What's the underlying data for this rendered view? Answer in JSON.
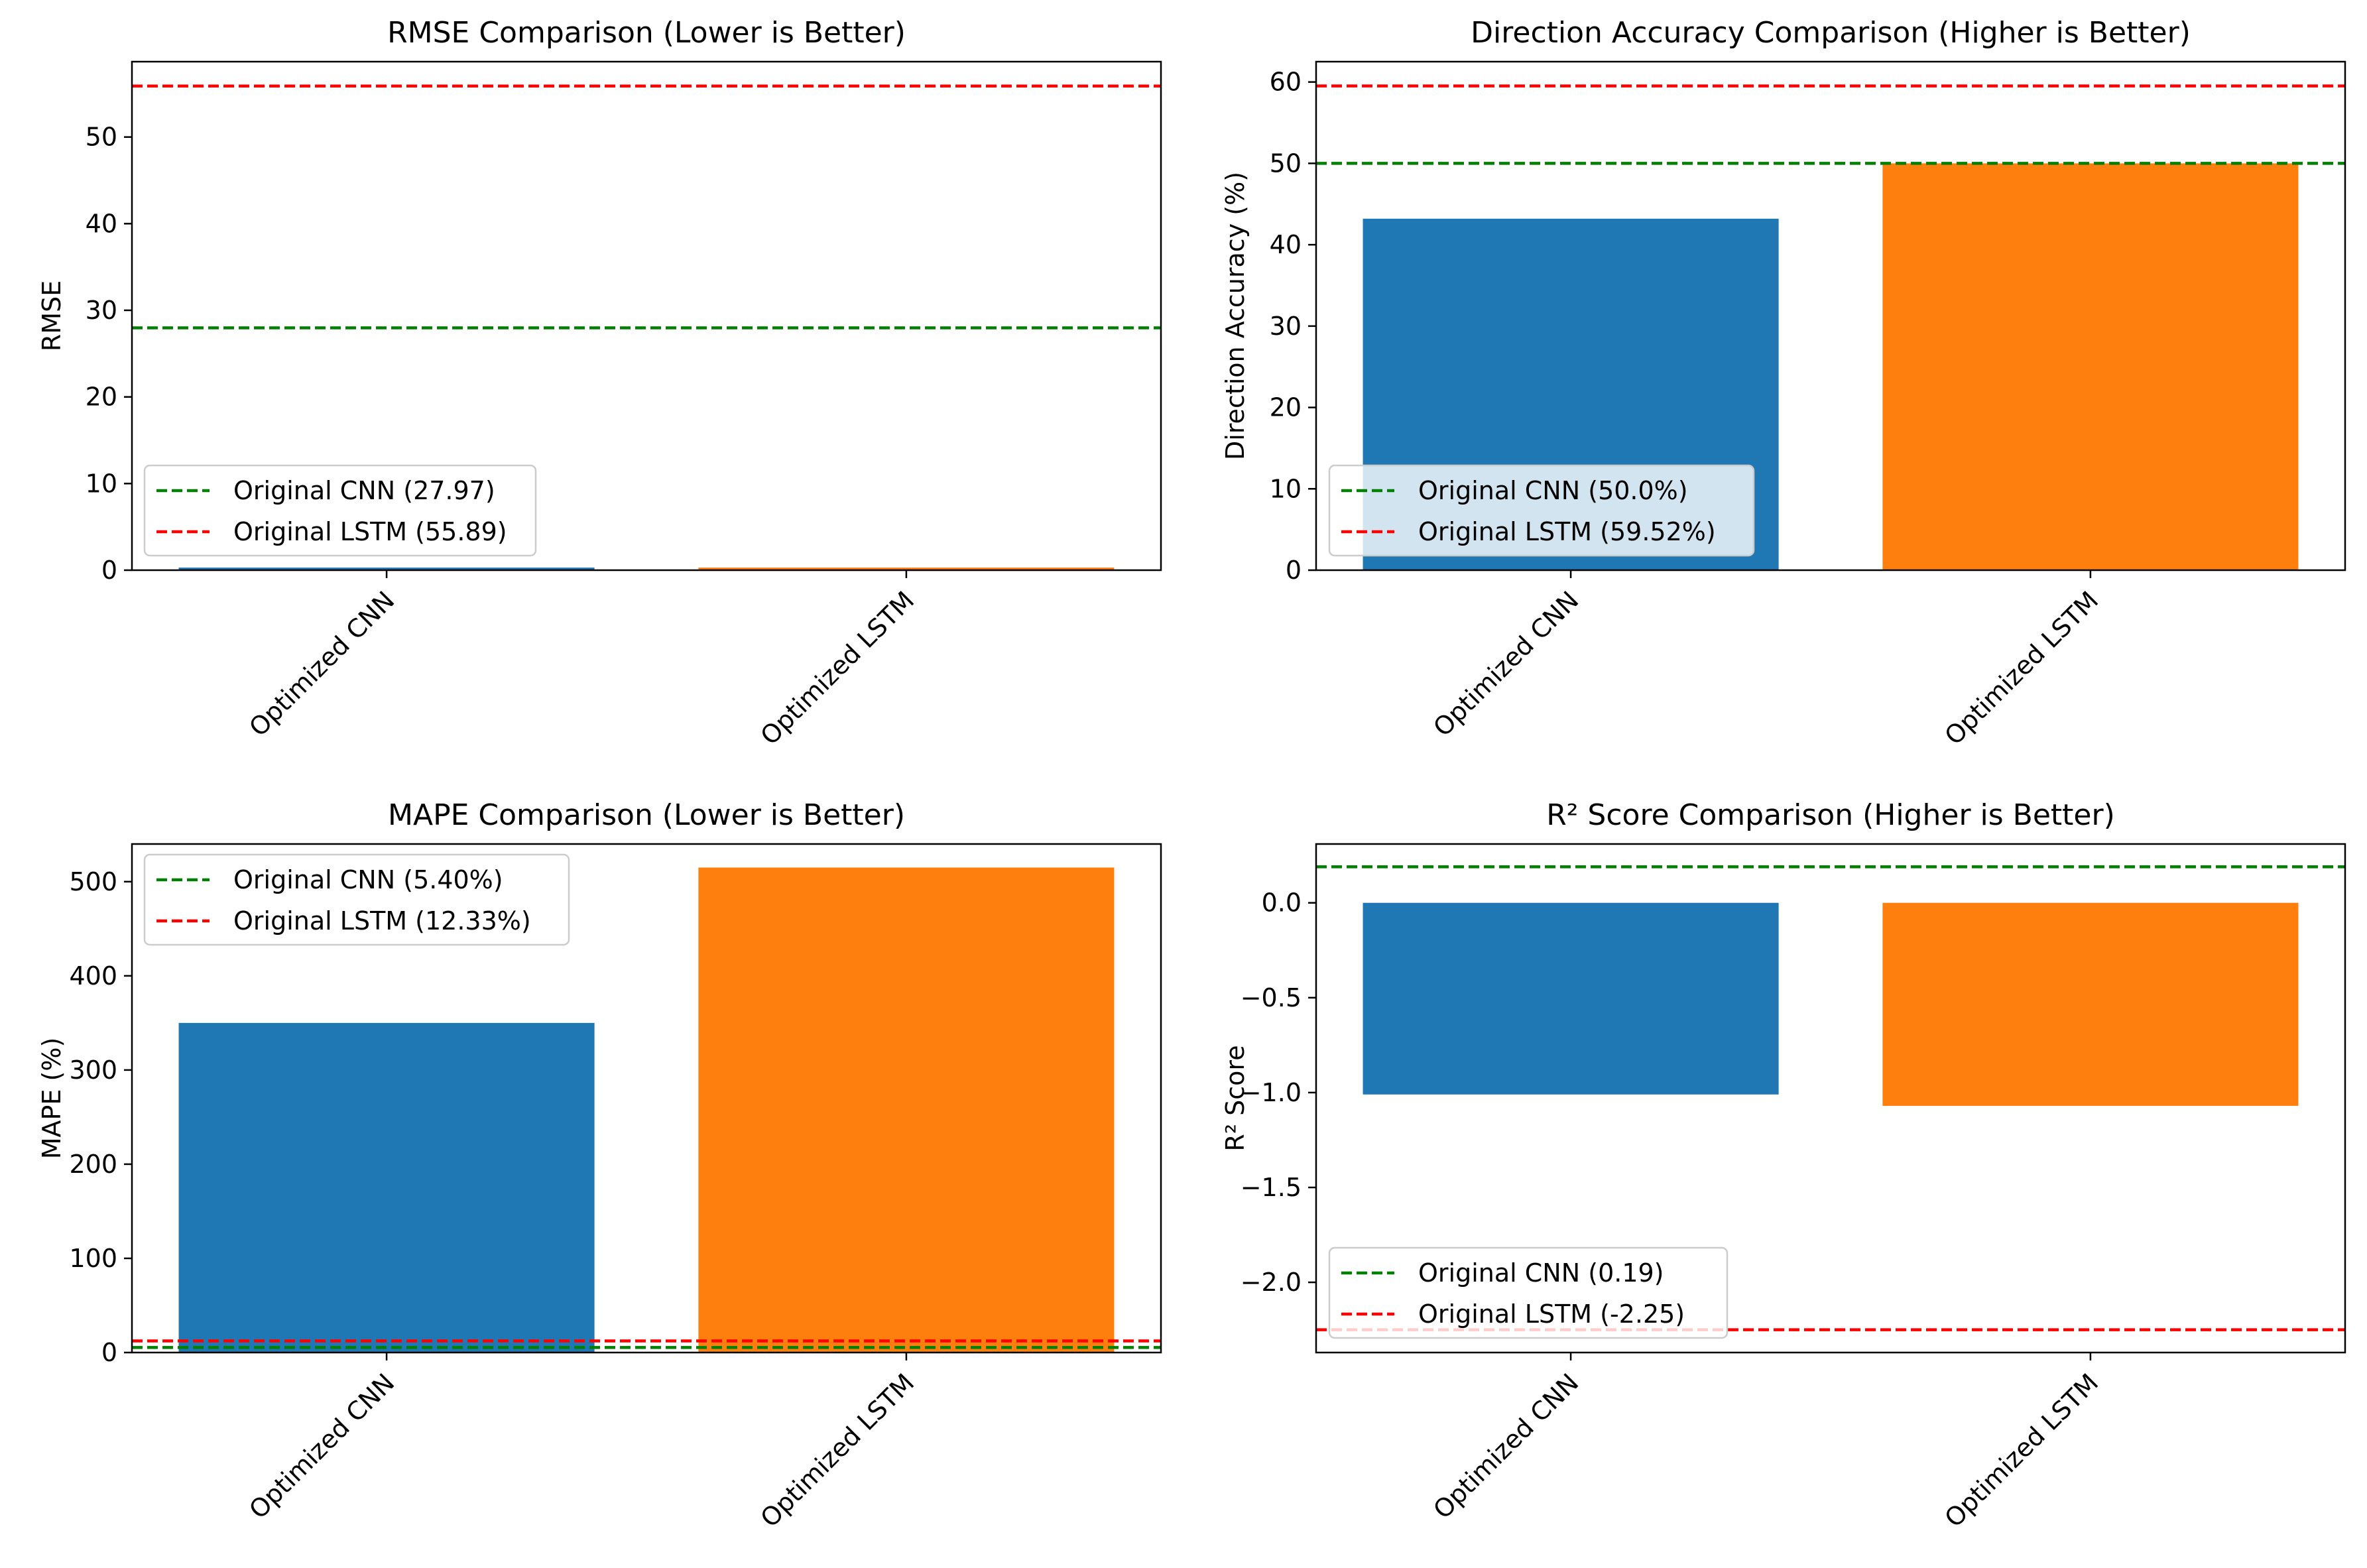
{
  "chart_data": [
    {
      "type": "bar",
      "title": "RMSE Comparison (Lower is Better)",
      "xlabel": "",
      "ylabel": "RMSE",
      "categories": [
        "Optimized CNN",
        "Optimized LSTM"
      ],
      "values": [
        0.3,
        0.3
      ],
      "bar_colors": [
        "#1f77b4",
        "#ff7f0e"
      ],
      "ylim": [
        0,
        58.7
      ],
      "yticks": [
        0,
        10,
        20,
        30,
        40,
        50
      ],
      "ytick_labels": [
        "0",
        "10",
        "20",
        "30",
        "40",
        "50"
      ],
      "reference_lines": [
        {
          "label": "Original CNN (27.97)",
          "value": 27.97,
          "color": "#008000"
        },
        {
          "label": "Original LSTM (55.89)",
          "value": 55.89,
          "color": "#ff0000"
        }
      ],
      "legend_position": "lower-left",
      "grid": false
    },
    {
      "type": "bar",
      "title": "Direction Accuracy Comparison (Higher is Better)",
      "xlabel": "",
      "ylabel": "Direction Accuracy (%)",
      "categories": [
        "Optimized CNN",
        "Optimized LSTM"
      ],
      "values": [
        43.2,
        50.0
      ],
      "bar_colors": [
        "#1f77b4",
        "#ff7f0e"
      ],
      "ylim": [
        0,
        62.5
      ],
      "yticks": [
        0,
        10,
        20,
        30,
        40,
        50,
        60
      ],
      "ytick_labels": [
        "0",
        "10",
        "20",
        "30",
        "40",
        "50",
        "60"
      ],
      "reference_lines": [
        {
          "label": "Original CNN (50.0%)",
          "value": 50.0,
          "color": "#008000"
        },
        {
          "label": "Original LSTM (59.52%)",
          "value": 59.52,
          "color": "#ff0000"
        }
      ],
      "legend_position": "lower-left",
      "grid": false
    },
    {
      "type": "bar",
      "title": "MAPE Comparison (Lower is Better)",
      "xlabel": "",
      "ylabel": "MAPE (%)",
      "categories": [
        "Optimized CNN",
        "Optimized LSTM"
      ],
      "values": [
        350,
        515
      ],
      "bar_colors": [
        "#1f77b4",
        "#ff7f0e"
      ],
      "ylim": [
        0,
        540
      ],
      "yticks": [
        0,
        100,
        200,
        300,
        400,
        500
      ],
      "ytick_labels": [
        "0",
        "100",
        "200",
        "300",
        "400",
        "500"
      ],
      "reference_lines": [
        {
          "label": "Original CNN (5.40%)",
          "value": 5.4,
          "color": "#008000"
        },
        {
          "label": "Original LSTM (12.33%)",
          "value": 12.33,
          "color": "#ff0000"
        }
      ],
      "legend_position": "upper-left",
      "grid": false
    },
    {
      "type": "bar",
      "title": "R² Score Comparison (Higher is Better)",
      "xlabel": "",
      "ylabel": "R² Score",
      "categories": [
        "Optimized CNN",
        "Optimized LSTM"
      ],
      "values": [
        -1.01,
        -1.07
      ],
      "bar_colors": [
        "#1f77b4",
        "#ff7f0e"
      ],
      "ylim": [
        -2.37,
        0.31
      ],
      "yticks": [
        0,
        -0.5,
        -1.0,
        -1.5,
        -2.0
      ],
      "ytick_labels": [
        "0.0",
        "−0.5",
        "−1.0",
        "−1.5",
        "−2.0"
      ],
      "reference_lines": [
        {
          "label": "Original CNN (0.19)",
          "value": 0.19,
          "color": "#008000"
        },
        {
          "label": "Original LSTM (-2.25)",
          "value": -2.25,
          "color": "#ff0000"
        }
      ],
      "legend_position": "lower-left",
      "grid": false
    }
  ]
}
